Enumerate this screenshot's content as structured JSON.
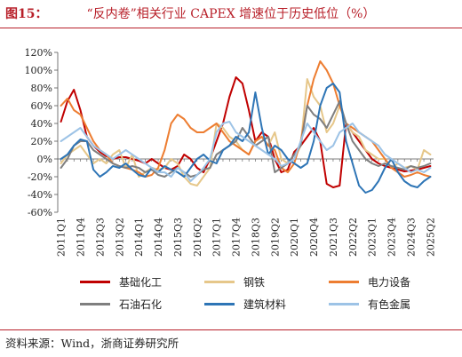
{
  "header": {
    "figure_label": "图15：",
    "title": "“反内卷”相关行业 CAPEX 增速位于历史低位（%）"
  },
  "source_note": "资料来源：Wind，浙商证券研究所",
  "colors": {
    "accent": "#b8202a",
    "基础化工": "#c00000",
    "钢铁": "#e6c78a",
    "电力设备": "#ed7d31",
    "石油石化": "#7f7f7f",
    "建筑材料": "#2e75b6",
    "有色金属": "#9dc3e6"
  },
  "chart_data": {
    "type": "line",
    "title": "“反内卷”相关行业 CAPEX 增速位于历史低位（%）",
    "ylim": [
      -60,
      120
    ],
    "yticks": [
      -60,
      -40,
      -20,
      0,
      20,
      40,
      60,
      80,
      100,
      120
    ],
    "ytick_labels": [
      "-60%",
      "-40%",
      "-20%",
      "0%",
      "20%",
      "40%",
      "60%",
      "80%",
      "100%",
      "120%"
    ],
    "x": [
      "2011Q1",
      "2011Q2",
      "2011Q3",
      "2011Q4",
      "2012Q1",
      "2012Q2",
      "2012Q3",
      "2012Q4",
      "2013Q1",
      "2013Q2",
      "2013Q3",
      "2013Q4",
      "2014Q1",
      "2014Q2",
      "2014Q3",
      "2014Q4",
      "2015Q1",
      "2015Q2",
      "2015Q3",
      "2015Q4",
      "2016Q1",
      "2016Q2",
      "2016Q3",
      "2016Q4",
      "2017Q1",
      "2017Q2",
      "2017Q3",
      "2017Q4",
      "2018Q1",
      "2018Q2",
      "2018Q3",
      "2018Q4",
      "2019Q1",
      "2019Q2",
      "2019Q3",
      "2019Q4",
      "2020Q1",
      "2020Q2",
      "2020Q3",
      "2020Q4",
      "2021Q1",
      "2021Q2",
      "2021Q3",
      "2021Q4",
      "2022Q1",
      "2022Q2",
      "2022Q3",
      "2022Q4",
      "2023Q1",
      "2023Q2",
      "2023Q3",
      "2023Q4",
      "2024Q1",
      "2024Q2",
      "2024Q3",
      "2024Q4",
      "2025Q1",
      "2025Q2"
    ],
    "x_tick_labels": [
      "2011Q1",
      "2011Q4",
      "2012Q3",
      "2013Q2",
      "2014Q1",
      "2014Q4",
      "2015Q3",
      "2016Q2",
      "2017Q1",
      "2017Q4",
      "2018Q3",
      "2019Q2",
      "2020Q1",
      "2020Q4",
      "2021Q3",
      "2022Q2",
      "2023Q1",
      "2023Q4",
      "2024Q3",
      "2025Q2"
    ],
    "series": [
      {
        "name": "基础化工",
        "values": [
          42,
          65,
          78,
          55,
          25,
          15,
          8,
          3,
          0,
          2,
          2,
          0,
          -2,
          -5,
          0,
          -5,
          -10,
          -12,
          -8,
          5,
          0,
          -10,
          -15,
          0,
          20,
          40,
          70,
          92,
          85,
          55,
          20,
          30,
          25,
          0,
          -15,
          -12,
          8,
          15,
          25,
          35,
          20,
          -28,
          -32,
          -30,
          40,
          30,
          20,
          10,
          0,
          -5,
          -8,
          -10,
          -12,
          -14,
          -13,
          -12,
          -10,
          -8
        ]
      },
      {
        "name": "钢铁",
        "values": [
          -5,
          5,
          10,
          15,
          5,
          -5,
          0,
          -5,
          5,
          10,
          -10,
          5,
          -20,
          -15,
          -10,
          -12,
          -10,
          0,
          -5,
          -20,
          -28,
          -30,
          -20,
          -10,
          40,
          35,
          25,
          20,
          10,
          5,
          20,
          25,
          15,
          30,
          0,
          -5,
          0,
          15,
          90,
          70,
          60,
          30,
          40,
          60,
          40,
          30,
          25,
          10,
          5,
          0,
          0,
          -10,
          -5,
          -10,
          -8,
          -12,
          10,
          5
        ]
      },
      {
        "name": "电力设备",
        "values": [
          60,
          68,
          55,
          50,
          35,
          20,
          10,
          5,
          -5,
          -8,
          -10,
          -12,
          -15,
          -20,
          -18,
          -10,
          10,
          40,
          50,
          45,
          35,
          30,
          30,
          35,
          40,
          30,
          20,
          15,
          10,
          5,
          20,
          25,
          15,
          10,
          -10,
          -15,
          -5,
          20,
          60,
          90,
          110,
          100,
          85,
          60,
          40,
          35,
          30,
          25,
          20,
          10,
          0,
          -10,
          -15,
          -20,
          -18,
          -15,
          -18,
          -20
        ]
      },
      {
        "name": "石油石化",
        "values": [
          -10,
          0,
          15,
          20,
          20,
          10,
          5,
          0,
          -5,
          -8,
          -10,
          -8,
          -10,
          -15,
          -12,
          -18,
          -20,
          -15,
          -10,
          -15,
          -20,
          -18,
          -12,
          -10,
          5,
          10,
          15,
          20,
          35,
          25,
          15,
          20,
          25,
          -15,
          -10,
          -5,
          5,
          15,
          60,
          50,
          45,
          35,
          50,
          65,
          40,
          20,
          10,
          0,
          -5,
          -8,
          -5,
          -8,
          -10,
          -12,
          -8,
          -10,
          -8,
          -5
        ]
      },
      {
        "name": "建筑材料",
        "values": [
          0,
          5,
          15,
          22,
          20,
          -12,
          -20,
          -15,
          -8,
          -10,
          -5,
          -12,
          -18,
          -20,
          -10,
          -15,
          -8,
          -12,
          -15,
          -20,
          -10,
          0,
          5,
          -2,
          -5,
          10,
          15,
          25,
          20,
          30,
          75,
          35,
          5,
          15,
          10,
          0,
          -5,
          -10,
          -5,
          20,
          60,
          80,
          85,
          75,
          20,
          -5,
          -30,
          -38,
          -35,
          -25,
          -10,
          0,
          -15,
          -25,
          -30,
          -32,
          -25,
          -20
        ]
      },
      {
        "name": "有色金属",
        "values": [
          20,
          25,
          30,
          35,
          25,
          15,
          10,
          5,
          0,
          5,
          10,
          5,
          0,
          -5,
          -10,
          -15,
          -15,
          -20,
          -10,
          -15,
          -25,
          -18,
          -10,
          0,
          30,
          40,
          42,
          30,
          25,
          20,
          15,
          10,
          5,
          0,
          -8,
          -5,
          0,
          20,
          40,
          30,
          20,
          10,
          15,
          30,
          35,
          40,
          30,
          25,
          20,
          15,
          5,
          0,
          -5,
          -10,
          -15,
          -12,
          -15,
          -10
        ]
      }
    ]
  }
}
